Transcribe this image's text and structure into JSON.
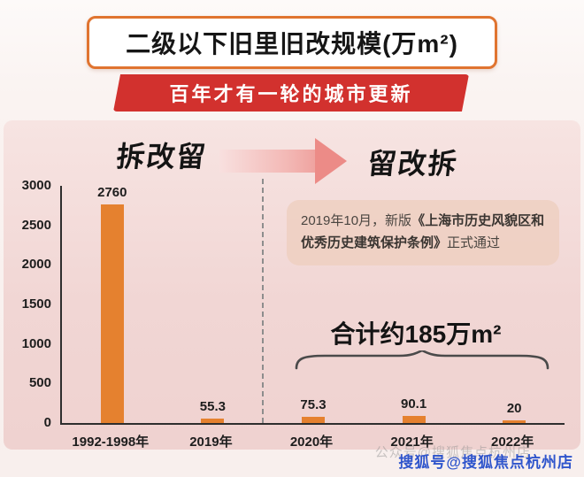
{
  "page": {
    "title": "二级以下旧里旧改规模(万m²)",
    "banner": "百年才有一轮的城市更新",
    "era_left": "拆改留",
    "era_right": "留改拆",
    "annotation": {
      "pre": "2019年10月，新版",
      "book": "《上海市历史风貌区和优秀历史建筑保护条例》",
      "post": "正式通过"
    },
    "total_label": "合计约185万m²",
    "watermark_faint": "公众号@搜狐焦点杭州店",
    "watermark_blue": "搜狐号@搜狐焦点杭州店"
  },
  "colors": {
    "bar": "#e5812f",
    "banner_red": "#d2312e",
    "title_border": "#e07430",
    "panel_pink": "#f1d6d4",
    "watermark_blue": "#2f55cc"
  },
  "chart_data": {
    "type": "bar",
    "title": "二级以下旧里旧改规模(万m²)",
    "categories": [
      "1992-1998年",
      "2019年",
      "2020年",
      "2021年",
      "2022年"
    ],
    "values": [
      2760,
      55.3,
      75.3,
      90.1,
      20
    ],
    "value_labels": [
      "2760",
      "55.3",
      "75.3",
      "90.1",
      "20"
    ],
    "ylim": [
      0,
      3000
    ],
    "yticks": [
      0,
      500,
      1000,
      1500,
      2000,
      2500,
      3000
    ],
    "xlabel": "",
    "ylabel": "",
    "grid": false,
    "legend": "none",
    "divider_after_index": 1,
    "annotation": "2019年10月，新版《上海市历史风貌区和优秀历史建筑保护条例》正式通过",
    "group_total_note": "合计约185万m²  (2020年+2021年+2022年)"
  }
}
